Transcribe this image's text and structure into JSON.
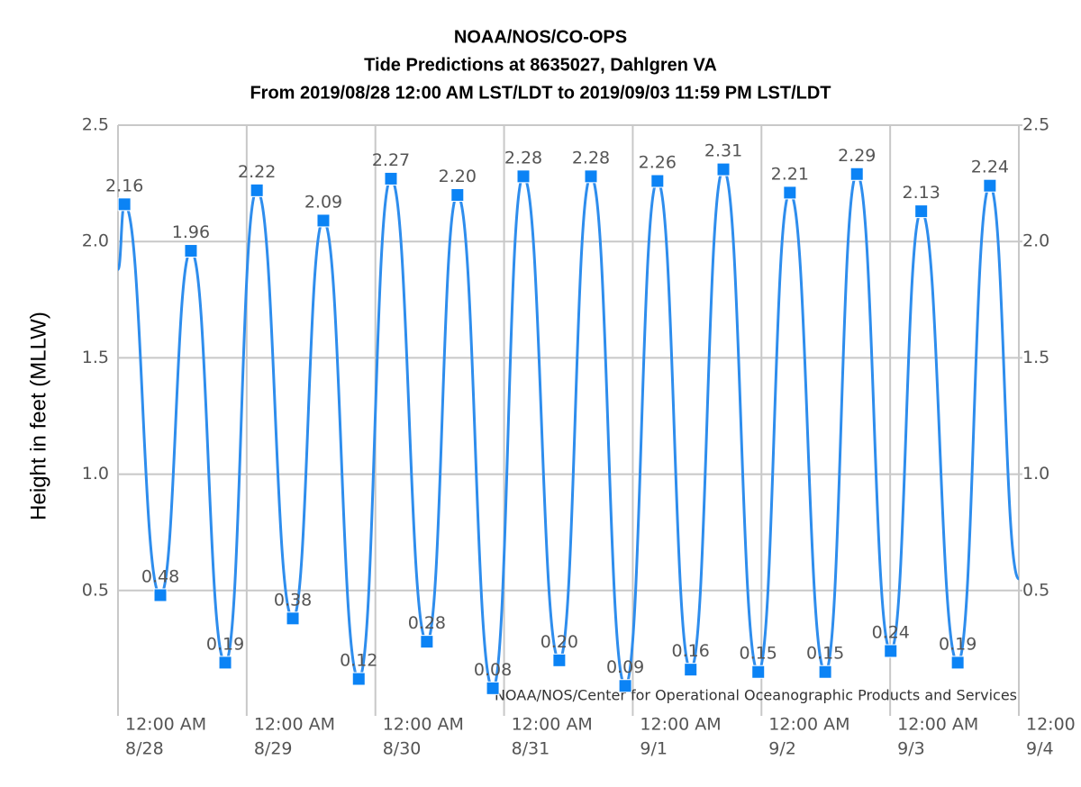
{
  "chart_data": {
    "type": "line",
    "title": [
      "NOAA/NOS/CO-OPS",
      "Tide Predictions at 8635027, Dahlgren VA",
      "From 2019/08/28 12:00 AM LST/LDT to 2019/09/03 11:59 PM LST/LDT"
    ],
    "y_label": "Height in feet (MLLW)",
    "credit": "NOAA/NOS/Center for Operational Oceanographic Products and Services",
    "xlim": [
      0,
      168
    ],
    "xticks": [
      {
        "value": 0,
        "label": "12:00 AM"
      },
      {
        "value": 24,
        "label": "12:00 AM"
      },
      {
        "value": 48,
        "label": "12:00 AM"
      },
      {
        "value": 72,
        "label": "12:00 AM"
      },
      {
        "value": 96,
        "label": "12:00 AM"
      },
      {
        "value": 120,
        "label": "12:00 AM"
      },
      {
        "value": 144,
        "label": "12:00 AM"
      },
      {
        "value": 168,
        "label": "12:00"
      }
    ],
    "xtick_dates": [
      "8/28",
      "8/29",
      "8/30",
      "8/31",
      "9/1",
      "9/2",
      "9/3",
      "9/4"
    ],
    "ylim": [
      0,
      2.5
    ],
    "yticks": [
      0.5,
      {
        "value": 1,
        "label": "1.0"
      },
      1.5,
      {
        "value": 2,
        "label": "2.0"
      },
      2.5
    ],
    "y2lim": [
      0,
      2.5
    ],
    "y2ticks": [
      0.5,
      {
        "value": 1,
        "label": "1.0"
      },
      1.5,
      {
        "value": 2,
        "label": "2.0"
      },
      2.5
    ],
    "grid": true,
    "series": [
      {
        "color": "#2e8ded",
        "style": "line",
        "x": [
          0,
          1.2,
          7.9,
          13.6,
          20.0,
          25.9,
          32.6,
          38.3,
          44.9,
          50.9,
          57.6,
          63.3,
          69.9,
          75.6,
          82.3,
          88.2,
          94.6,
          100.6,
          106.8,
          112.9,
          119.4,
          125.3,
          131.9,
          137.8,
          144.1,
          149.8,
          156.6,
          162.6,
          168
        ],
        "values": [
          1.88,
          2.16,
          0.48,
          1.96,
          0.19,
          2.22,
          0.38,
          2.09,
          0.12,
          2.27,
          0.28,
          2.2,
          0.08,
          2.28,
          0.2,
          2.28,
          0.09,
          2.26,
          0.16,
          2.31,
          0.15,
          2.21,
          0.15,
          2.29,
          0.24,
          2.13,
          0.19,
          2.24,
          0.55
        ]
      },
      {
        "color": "#0b83f5",
        "style": "markers",
        "x": [
          1.2,
          7.9,
          13.6,
          20.0,
          25.9,
          32.6,
          38.3,
          44.9,
          50.9,
          57.6,
          63.3,
          69.9,
          75.6,
          82.3,
          88.2,
          94.6,
          100.6,
          106.8,
          112.9,
          119.4,
          125.3,
          131.9,
          137.8,
          144.1,
          149.8,
          156.6,
          162.6
        ],
        "values": [
          2.16,
          0.48,
          1.96,
          0.19,
          2.22,
          0.38,
          2.09,
          0.12,
          2.27,
          0.28,
          2.2,
          0.08,
          2.28,
          0.2,
          2.28,
          0.09,
          2.26,
          0.16,
          2.31,
          0.15,
          2.21,
          0.15,
          2.29,
          0.24,
          2.13,
          0.19,
          2.24
        ],
        "value_labels": [
          "2.16",
          "0.48",
          "1.96",
          "0.19",
          "2.22",
          "0.38",
          "2.09",
          "0.12",
          "2.27",
          "0.28",
          "2.20",
          "0.08",
          "2.28",
          "0.20",
          "2.28",
          "0.09",
          "2.26",
          "0.16",
          "2.31",
          "0.15",
          "2.21",
          "0.15",
          "2.29",
          "0.24",
          "2.13",
          "0.19",
          "2.24"
        ]
      }
    ]
  }
}
